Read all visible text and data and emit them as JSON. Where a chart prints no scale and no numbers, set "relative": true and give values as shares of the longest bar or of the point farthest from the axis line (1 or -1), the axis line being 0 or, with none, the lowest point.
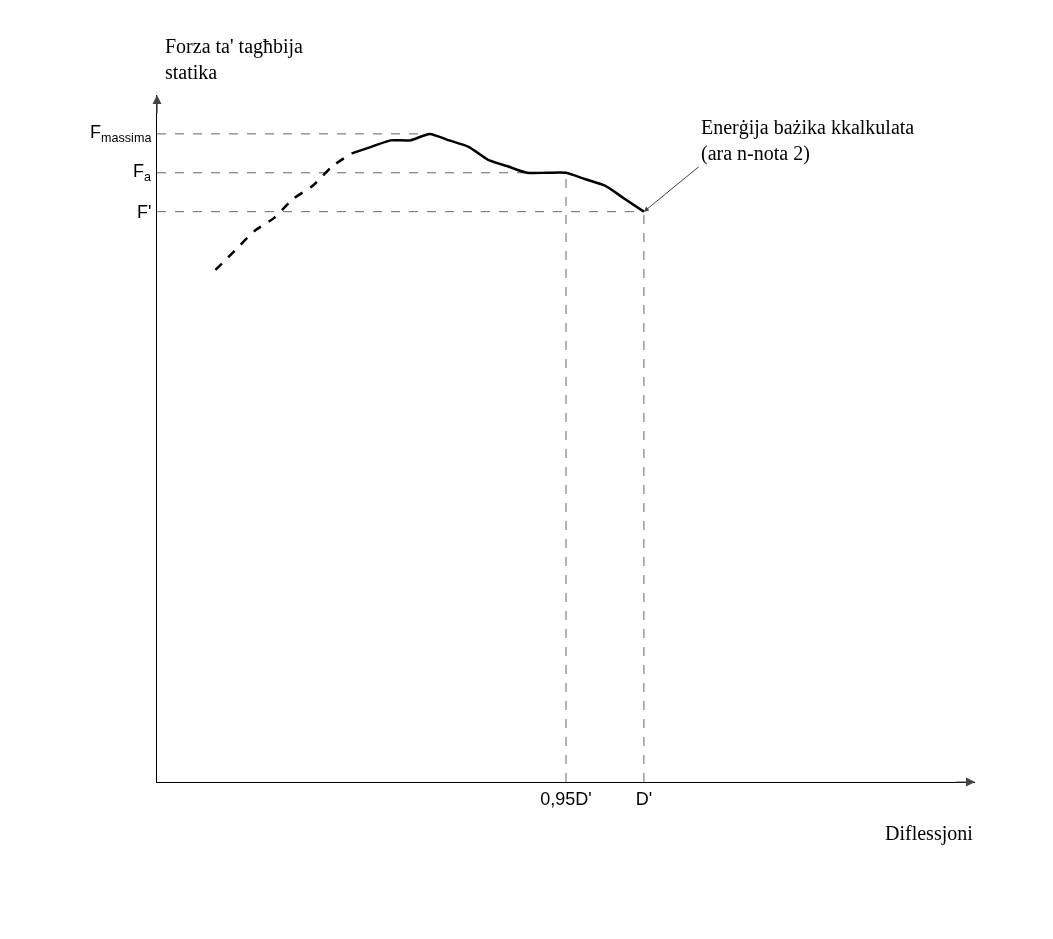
{
  "chart_data": {
    "type": "line",
    "relative": true,
    "xlabel": "Diflessjoni",
    "ylabel": "Forza ta' tagħbija\nstatika",
    "categories": [
      null,
      null,
      null,
      null,
      null,
      null,
      null,
      null,
      null,
      null,
      null,
      null,
      null,
      null,
      null,
      null,
      null,
      null,
      null,
      null,
      null,
      "0,95D'",
      null,
      null,
      null,
      "D'",
      null,
      null,
      null,
      null,
      null,
      null,
      null,
      null,
      null,
      null,
      null,
      null,
      null,
      null,
      null,
      null,
      null
    ],
    "grid": "x",
    "marker": "none",
    "series": [
      {
        "color": "#000000",
        "line_style": "dashed",
        "values": [
          null,
          null,
          null,
          0.79,
          0.82,
          0.85,
          0.87,
          0.9,
          0.92,
          0.95,
          0.97,
          null,
          null,
          null,
          null,
          null,
          null,
          null,
          null,
          null,
          null,
          null,
          null,
          null,
          null,
          null,
          null,
          null,
          null,
          null,
          null,
          null,
          null,
          null,
          null,
          null,
          null,
          null,
          null,
          null,
          null,
          null,
          null
        ]
      },
      {
        "color": "#000000",
        "line_style": "solid",
        "values": [
          null,
          null,
          null,
          null,
          null,
          null,
          null,
          null,
          null,
          null,
          0.97,
          0.98,
          0.99,
          0.99,
          1,
          0.99,
          0.98,
          0.96,
          0.95,
          0.94,
          0.94,
          0.94,
          0.93,
          0.92,
          0.9,
          0.88,
          null,
          null,
          null,
          null,
          null,
          null,
          null,
          null,
          null,
          null,
          null,
          null,
          null,
          null,
          null,
          null,
          null
        ]
      }
    ],
    "ref_lines": [
      {
        "axis": "y",
        "value": 1,
        "label": "F$_{massima}$"
      },
      {
        "axis": "y",
        "value": 0.94,
        "label": "F$_{a}$"
      },
      {
        "axis": "y",
        "value": 0.88,
        "label": "F'"
      }
    ],
    "annotations": [
      {
        "text": "Enerġija bażika kkalkulata\n(ara n-nota 2)",
        "x": "D'",
        "y": 0.88
      }
    ]
  }
}
